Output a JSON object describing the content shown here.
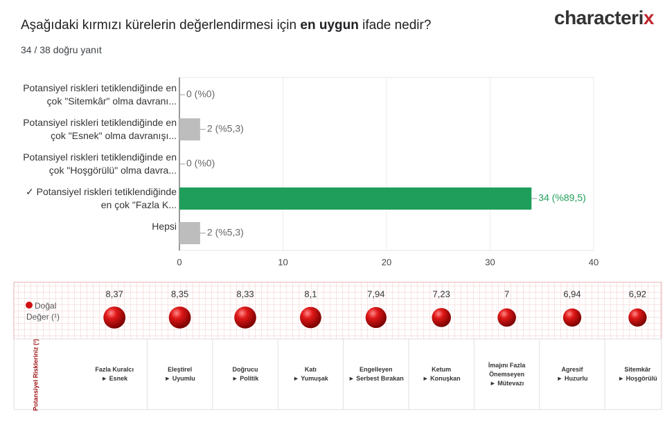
{
  "header": {
    "title_parts": [
      "Aşağıdaki kırmızı kürelerin değerlendirmesi için ",
      "en uygun",
      " ifade nedir?"
    ],
    "subtitle": "34 / 38 doğru yanıt",
    "logo_parts": [
      "characteri",
      "x"
    ]
  },
  "chart_data": [
    {
      "type": "hbar",
      "categories": [
        "Potansiyel riskleri tetiklendiğinde en çok \"Sitemkâr\" olma davranı...",
        "Potansiyel riskleri tetiklendiğinde en çok \"Esnek\" olma davranışı...",
        "Potansiyel riskleri tetiklendiğinde en çok \"Hoşgörülü\" olma davra...",
        "✓ Potansiyel riskleri tetiklendiğinde en çok \"Fazla K...",
        "Hepsi"
      ],
      "values": [
        0,
        2,
        0,
        34,
        2
      ],
      "value_labels": [
        "0 (%0)",
        "2 (%5,3)",
        "0 (%0)",
        "34 (%89,5)",
        "2 (%5,3)"
      ],
      "colors": [
        "#bdbdbd",
        "#bdbdbd",
        "#bdbdbd",
        "#1e9e5a",
        "#bdbdbd"
      ],
      "xlim": [
        0,
        40
      ],
      "xticks": [
        0,
        10,
        20,
        30,
        40
      ],
      "grid": true
    },
    {
      "type": "dot",
      "row_label": "Doğal Değer (¹)",
      "column_label": "Potansiyel Riskleriniz (²)",
      "categories": [
        "Fazla Kuralcı",
        "Eleştirel",
        "Doğrucu",
        "Katı",
        "Engelleyen",
        "Ketum",
        "İmajını Fazla Önemseyen",
        "Agresif",
        "Sitemkâr"
      ],
      "counterparts": [
        "► Esnek",
        "► Uyumlu",
        "► Politik",
        "► Yumuşak",
        "► Serbest Bırakan",
        "► Konuşkan",
        "► Mütevazı",
        "► Huzurlu",
        "► Hoşgörülü"
      ],
      "values": [
        8.37,
        8.35,
        8.33,
        8.1,
        7.94,
        7.23,
        7,
        6.94,
        6.92
      ],
      "value_labels": [
        "8,37",
        "8,35",
        "8,33",
        "8,1",
        "7,94",
        "7,23",
        "7",
        "6,94",
        "6,92"
      ],
      "color": "#d01010"
    }
  ]
}
